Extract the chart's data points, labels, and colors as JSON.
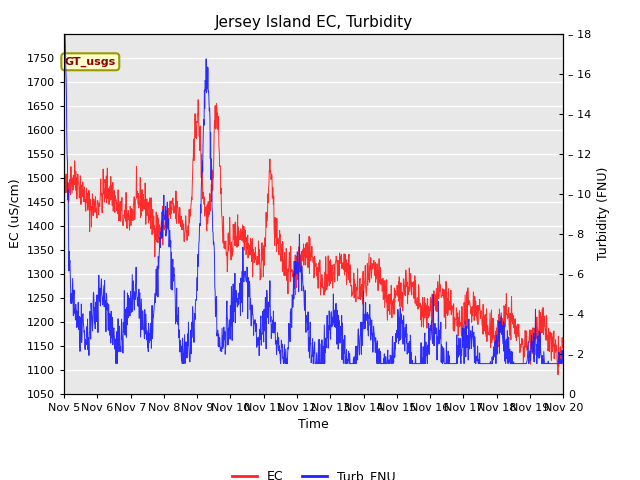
{
  "title": "Jersey Island EC, Turbidity",
  "xlabel": "Time",
  "ylabel_left": "EC (uS/cm)",
  "ylabel_right": "Turbidity (FNU)",
  "ylim_left": [
    1050,
    1800
  ],
  "ylim_right": [
    0,
    18
  ],
  "yticks_left": [
    1050,
    1100,
    1150,
    1200,
    1250,
    1300,
    1350,
    1400,
    1450,
    1500,
    1550,
    1600,
    1650,
    1700,
    1750
  ],
  "yticks_right": [
    0,
    2,
    4,
    6,
    8,
    10,
    12,
    14,
    16,
    18
  ],
  "annotation_text": "GT_usgs",
  "bg_color": "#e8e8e8",
  "ec_color": "#ff2222",
  "turb_color": "#2222ff",
  "legend_entries": [
    "EC",
    "Turb_FNU"
  ],
  "title_fontsize": 11,
  "axis_label_fontsize": 9,
  "tick_fontsize": 8
}
